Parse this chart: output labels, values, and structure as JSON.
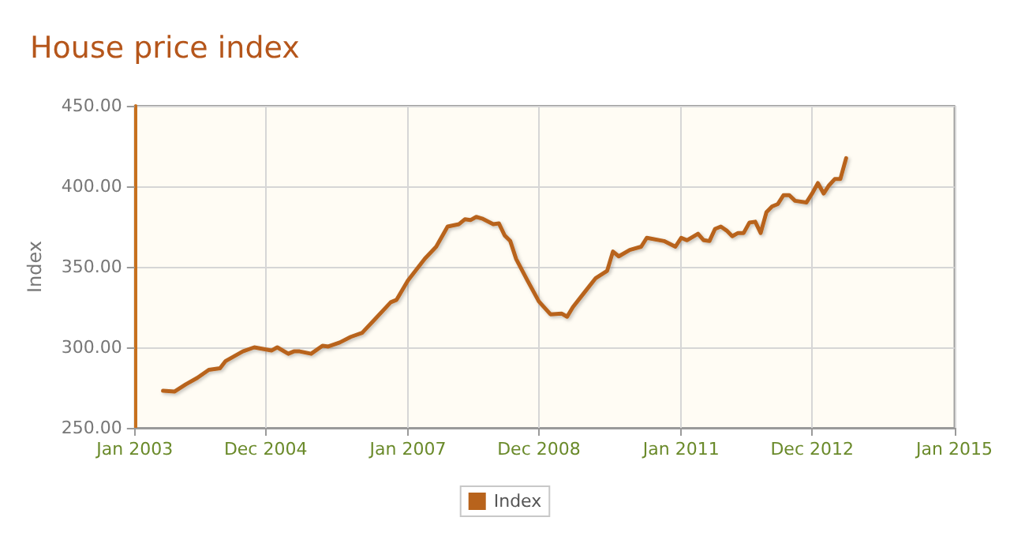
{
  "chart_data": {
    "type": "line",
    "title": "House price index",
    "ylabel": "Index",
    "x": [
      "2003-06",
      "2003-08",
      "2003-10",
      "2003-12",
      "2004-02",
      "2004-04",
      "2004-05",
      "2004-08",
      "2004-10",
      "2005-01",
      "2005-02",
      "2005-04",
      "2005-05",
      "2005-06",
      "2005-08",
      "2005-10",
      "2005-11",
      "2006-01",
      "2006-03",
      "2006-05",
      "2006-07",
      "2006-10",
      "2006-11",
      "2007-01",
      "2007-04",
      "2007-06",
      "2007-08",
      "2007-10",
      "2007-11",
      "2007-12",
      "2008-01",
      "2008-02",
      "2008-04",
      "2008-05",
      "2008-06",
      "2008-07",
      "2008-08",
      "2008-10",
      "2008-12",
      "2009-02",
      "2009-04",
      "2009-05",
      "2009-06",
      "2009-08",
      "2009-10",
      "2009-12",
      "2010-01",
      "2010-02",
      "2010-04",
      "2010-06",
      "2010-07",
      "2010-10",
      "2010-12",
      "2011-01",
      "2011-02",
      "2011-04",
      "2011-05",
      "2011-06",
      "2011-07",
      "2011-08",
      "2011-09",
      "2011-10",
      "2011-11",
      "2011-12",
      "2012-01",
      "2012-02",
      "2012-03",
      "2012-04",
      "2012-05",
      "2012-06",
      "2012-07",
      "2012-08",
      "2012-09",
      "2012-11",
      "2012-12",
      "2013-01",
      "2013-02",
      "2013-03",
      "2013-04",
      "2013-05",
      "2013-06"
    ],
    "series": [
      {
        "name": "Index",
        "color": "#b8631c",
        "values": [
          273,
          272.5,
          277,
          281,
          286,
          287,
          291.5,
          297.5,
          300,
          298,
          300,
          296,
          297.5,
          297.5,
          296,
          301,
          300.5,
          303,
          306.5,
          309,
          316.5,
          328,
          329.5,
          341.5,
          355,
          362.5,
          375,
          376.5,
          379.5,
          379,
          381,
          380,
          376.5,
          377,
          369.5,
          366,
          355,
          341.5,
          328.5,
          320.5,
          321,
          319,
          325,
          334,
          343,
          347.5,
          359.5,
          356.5,
          360.5,
          362.5,
          368,
          366,
          362.5,
          368,
          366.5,
          370.5,
          366.5,
          366,
          373.5,
          375,
          372.5,
          369,
          371,
          371,
          377.5,
          378,
          371,
          384,
          387.5,
          389,
          394.5,
          394.5,
          391,
          390,
          395.5,
          402,
          395.5,
          400.5,
          404.5,
          404.5,
          417.5
        ]
      }
    ],
    "xlim": [
      "2003-01",
      "2015-01"
    ],
    "xticks": [
      {
        "value": "2003-01",
        "label": "Jan 2003"
      },
      {
        "value": "2004-12",
        "label": "Dec 2004"
      },
      {
        "value": "2007-01",
        "label": "Jan 2007"
      },
      {
        "value": "2008-12",
        "label": "Dec 2008"
      },
      {
        "value": "2011-01",
        "label": "Jan 2011"
      },
      {
        "value": "2012-12",
        "label": "Dec 2012"
      },
      {
        "value": "2015-01",
        "label": "Jan 2015"
      }
    ],
    "ylim": [
      250,
      450
    ],
    "yticks": [
      {
        "value": 250,
        "label": "250.00"
      },
      {
        "value": 300,
        "label": "300.00"
      },
      {
        "value": 350,
        "label": "350.00"
      },
      {
        "value": 400,
        "label": "400.00"
      },
      {
        "value": 450,
        "label": "450.00"
      }
    ],
    "grid": true,
    "legend": "bottom",
    "marker": "none",
    "line_style": "solid"
  }
}
